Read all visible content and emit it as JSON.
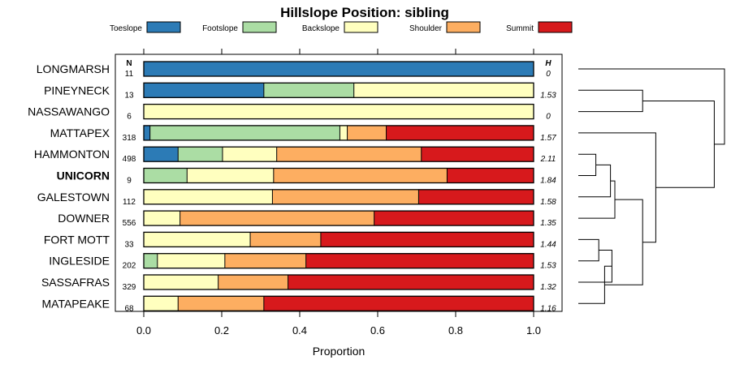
{
  "chart_data": {
    "type": "bar",
    "subtype": "stacked-horizontal-proportion",
    "title": "Hillslope Position: sibling",
    "xlabel": "Proportion",
    "ylabel": "",
    "xlim": [
      0,
      1
    ],
    "x_ticks": [
      "0.0",
      "0.2",
      "0.4",
      "0.6",
      "0.8",
      "1.0"
    ],
    "x_tick_values": [
      0,
      0.2,
      0.4,
      0.6,
      0.8,
      1.0
    ],
    "n_header": "N",
    "h_header": "H",
    "legend": [
      {
        "name": "Toeslope",
        "color": "#2C7BB6"
      },
      {
        "name": "Footslope",
        "color": "#ABDDA4"
      },
      {
        "name": "Backslope",
        "color": "#FFFFBF"
      },
      {
        "name": "Shoulder",
        "color": "#FDAE61"
      },
      {
        "name": "Summit",
        "color": "#D7191C"
      }
    ],
    "highlight": "UNICORN",
    "categories": [
      "LONGMARSH",
      "PINEYNECK",
      "NASSAWANGO",
      "MATTAPEX",
      "HAMMONTON",
      "UNICORN",
      "GALESTOWN",
      "DOWNER",
      "FORT MOTT",
      "INGLESIDE",
      "SASSAFRAS",
      "MATAPEAKE"
    ],
    "n": [
      "11",
      "13",
      "6",
      "318",
      "498",
      "9",
      "112",
      "556",
      "33",
      "202",
      "329",
      "68"
    ],
    "h": [
      "0",
      "1.53",
      "0",
      "1.57",
      "2.11",
      "1.84",
      "1.58",
      "1.35",
      "1.44",
      "1.53",
      "1.32",
      "1.16"
    ],
    "series": [
      {
        "name": "Toeslope",
        "values": [
          1.0,
          0.308,
          0.0,
          0.016,
          0.088,
          0.0,
          0.0,
          0.0,
          0.0,
          0.0,
          0.0,
          0.0
        ]
      },
      {
        "name": "Footslope",
        "values": [
          0.0,
          0.231,
          0.0,
          0.487,
          0.114,
          0.111,
          0.0,
          0.0,
          0.0,
          0.035,
          0.0,
          0.0
        ]
      },
      {
        "name": "Backslope",
        "values": [
          0.0,
          0.461,
          1.0,
          0.019,
          0.139,
          0.222,
          0.33,
          0.093,
          0.273,
          0.173,
          0.191,
          0.088
        ]
      },
      {
        "name": "Shoulder",
        "values": [
          0.0,
          0.0,
          0.0,
          0.1,
          0.371,
          0.445,
          0.375,
          0.498,
          0.181,
          0.208,
          0.179,
          0.22
        ]
      },
      {
        "name": "Summit",
        "values": [
          0.0,
          0.0,
          0.0,
          0.378,
          0.288,
          0.222,
          0.295,
          0.409,
          0.546,
          0.584,
          0.63,
          0.692
        ]
      }
    ],
    "dendrogram": {
      "leaf_order": [
        "LONGMARSH",
        "PINEYNECK",
        "NASSAWANGO",
        "MATTAPEX",
        "HAMMONTON",
        "UNICORN",
        "GALESTOWN",
        "DOWNER",
        "FORT MOTT",
        "INGLESIDE",
        "SASSAFRAS",
        "MATAPEAKE"
      ],
      "merges": [
        {
          "a": "HAMMONTON",
          "b": "UNICORN",
          "height": 0.12
        },
        {
          "a": "FORT MOTT",
          "b": "INGLESIDE",
          "height": 0.14
        },
        {
          "a": "m1",
          "b": "GALESTOWN",
          "height": 0.22
        },
        {
          "a": "m2",
          "b": "SASSAFRAS",
          "height": 0.23
        },
        {
          "a": "PINEYNECK",
          "b": "NASSAWANGO",
          "height": 0.44
        },
        {
          "a": "m3",
          "b": "DOWNER",
          "height": 0.25
        },
        {
          "a": "m4",
          "b": "MATAPEAKE",
          "height": 0.18
        },
        {
          "a": "m6",
          "b": "m7",
          "height": 0.44
        },
        {
          "a": "MATTAPEX",
          "b": "m8",
          "height": 0.53
        },
        {
          "a": "m5",
          "b": "m9",
          "height": 0.93
        },
        {
          "a": "LONGMARSH",
          "b": "m10",
          "height": 1.0
        }
      ]
    }
  }
}
